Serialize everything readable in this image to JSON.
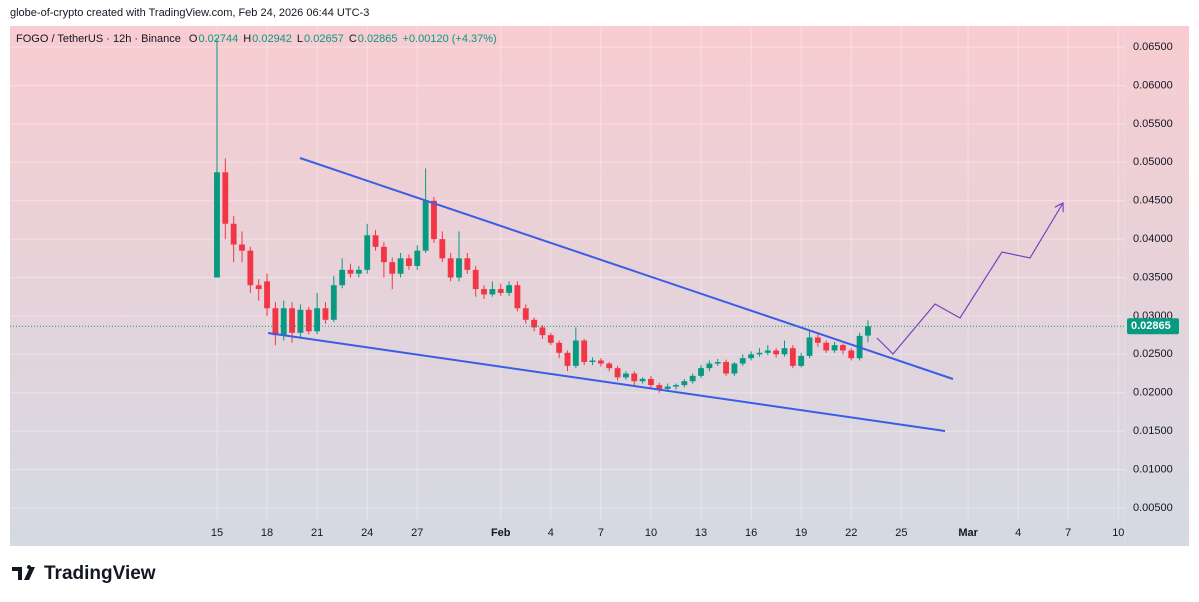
{
  "chart_data": {
    "type": "candlestick",
    "credit": "globe-of-crypto created with TradingView.com, Feb 24, 2026 06:44 UTC-3",
    "symbol": "FOGO / TetherUS · 12h · Binance",
    "ohlc_legend": [
      {
        "label": "O",
        "value": "0.02744"
      },
      {
        "label": "H",
        "value": "0.02942"
      },
      {
        "label": "L",
        "value": "0.02657"
      },
      {
        "label": "C",
        "value": "0.02865"
      }
    ],
    "change": "+0.00120 (+4.37%)",
    "brand": "TradingView",
    "up_color": "#089981",
    "down_color": "#f23645",
    "grid": true,
    "x": [
      0,
      0.5,
      1,
      1.5,
      2,
      2.5,
      3,
      3.5,
      4,
      4.5,
      5,
      5.5,
      6,
      6.5,
      7,
      7.5,
      8,
      8.5,
      9,
      9.5,
      10,
      10.5,
      11,
      11.5,
      12,
      12.5,
      13,
      13.5,
      14,
      14.5,
      15,
      15.5,
      16,
      16.5,
      17,
      17.5,
      18,
      18.5,
      19,
      19.5,
      20,
      20.5,
      21,
      21.5,
      22,
      22.5,
      23,
      23.5,
      24,
      24.5,
      25,
      25.5,
      26,
      26.5,
      27,
      27.5,
      28,
      28.5,
      29,
      29.5,
      30,
      30.5,
      31,
      31.5,
      32,
      32.5,
      33,
      33.5,
      34,
      34.5,
      35,
      35.5,
      36,
      36.5,
      37,
      37.5,
      38,
      38.5,
      39
    ],
    "open": [
      0.035,
      0.0487,
      0.042,
      0.0393,
      0.0385,
      0.034,
      0.0345,
      0.031,
      0.0275,
      0.031,
      0.0278,
      0.0308,
      0.028,
      0.031,
      0.0295,
      0.034,
      0.036,
      0.0355,
      0.036,
      0.0405,
      0.039,
      0.037,
      0.0355,
      0.0375,
      0.0365,
      0.0385,
      0.045,
      0.04,
      0.0375,
      0.035,
      0.0375,
      0.036,
      0.0335,
      0.0328,
      0.0335,
      0.033,
      0.034,
      0.031,
      0.0295,
      0.0285,
      0.0275,
      0.0265,
      0.0252,
      0.0235,
      0.0268,
      0.024,
      0.0242,
      0.0238,
      0.0232,
      0.022,
      0.0225,
      0.0215,
      0.0218,
      0.021,
      0.0205,
      0.0208,
      0.021,
      0.0215,
      0.0222,
      0.0232,
      0.0238,
      0.024,
      0.0225,
      0.0238,
      0.0245,
      0.025,
      0.0252,
      0.0255,
      0.025,
      0.0258,
      0.0235,
      0.0248,
      0.0272,
      0.0265,
      0.0255,
      0.0262,
      0.0255,
      0.0245,
      0.02744
    ],
    "high": [
      0.0662,
      0.0505,
      0.043,
      0.041,
      0.039,
      0.0348,
      0.0355,
      0.0318,
      0.032,
      0.0318,
      0.0315,
      0.0312,
      0.033,
      0.0318,
      0.0352,
      0.0375,
      0.0368,
      0.0365,
      0.042,
      0.0412,
      0.0396,
      0.0376,
      0.0382,
      0.038,
      0.0392,
      0.0492,
      0.0455,
      0.041,
      0.0382,
      0.041,
      0.0382,
      0.0365,
      0.034,
      0.0345,
      0.0342,
      0.0345,
      0.0345,
      0.0315,
      0.0298,
      0.0288,
      0.0278,
      0.0268,
      0.0255,
      0.0285,
      0.027,
      0.0246,
      0.0245,
      0.024,
      0.0235,
      0.0228,
      0.0228,
      0.022,
      0.0222,
      0.0213,
      0.0212,
      0.0212,
      0.0218,
      0.0225,
      0.0236,
      0.0242,
      0.0244,
      0.0243,
      0.024,
      0.025,
      0.0254,
      0.0258,
      0.0262,
      0.0258,
      0.0268,
      0.0262,
      0.0252,
      0.0282,
      0.0276,
      0.0268,
      0.0266,
      0.0264,
      0.0258,
      0.0278,
      0.02942
    ],
    "low": [
      0.035,
      0.04,
      0.037,
      0.037,
      0.033,
      0.032,
      0.03,
      0.0262,
      0.0268,
      0.0265,
      0.0272,
      0.0276,
      0.0276,
      0.029,
      0.0292,
      0.0336,
      0.035,
      0.035,
      0.0355,
      0.0385,
      0.035,
      0.0335,
      0.035,
      0.036,
      0.036,
      0.0382,
      0.0395,
      0.037,
      0.0345,
      0.0345,
      0.0355,
      0.0325,
      0.0322,
      0.0325,
      0.0326,
      0.0326,
      0.0306,
      0.029,
      0.028,
      0.027,
      0.0262,
      0.0245,
      0.0228,
      0.0232,
      0.0236,
      0.0236,
      0.0234,
      0.0228,
      0.0216,
      0.0217,
      0.021,
      0.0212,
      0.0206,
      0.02,
      0.0203,
      0.0204,
      0.0207,
      0.0212,
      0.0219,
      0.0228,
      0.0235,
      0.0222,
      0.0222,
      0.0235,
      0.0242,
      0.0247,
      0.0249,
      0.0246,
      0.0247,
      0.0232,
      0.0233,
      0.0245,
      0.026,
      0.0252,
      0.0252,
      0.025,
      0.0242,
      0.0242,
      0.02657
    ],
    "close": [
      0.0487,
      0.042,
      0.0393,
      0.0385,
      0.034,
      0.0335,
      0.031,
      0.0275,
      0.031,
      0.0278,
      0.0308,
      0.028,
      0.031,
      0.0295,
      0.034,
      0.036,
      0.0355,
      0.036,
      0.0405,
      0.039,
      0.037,
      0.0355,
      0.0375,
      0.0365,
      0.0385,
      0.045,
      0.04,
      0.0375,
      0.035,
      0.0375,
      0.036,
      0.0335,
      0.0328,
      0.0335,
      0.033,
      0.034,
      0.031,
      0.0295,
      0.0285,
      0.0275,
      0.0265,
      0.0252,
      0.0235,
      0.0268,
      0.024,
      0.0242,
      0.0238,
      0.0232,
      0.022,
      0.0225,
      0.0215,
      0.0218,
      0.021,
      0.0205,
      0.0208,
      0.021,
      0.0215,
      0.0222,
      0.0232,
      0.0238,
      0.024,
      0.0225,
      0.0238,
      0.0245,
      0.025,
      0.0252,
      0.0255,
      0.025,
      0.0258,
      0.0235,
      0.0248,
      0.0272,
      0.0265,
      0.0255,
      0.0262,
      0.0255,
      0.0245,
      0.0274,
      0.02865
    ],
    "last_price": {
      "value": 0.02865,
      "label": "0.02865"
    },
    "xlim": [
      -12.4,
      54.4
    ],
    "xticks": [
      {
        "value": 0,
        "label": "15"
      },
      {
        "value": 3,
        "label": "18"
      },
      {
        "value": 6,
        "label": "21"
      },
      {
        "value": 9,
        "label": "24"
      },
      {
        "value": 12,
        "label": "27"
      },
      {
        "value": 17,
        "label": "Feb"
      },
      {
        "value": 20,
        "label": "4"
      },
      {
        "value": 23,
        "label": "7"
      },
      {
        "value": 26,
        "label": "10"
      },
      {
        "value": 29,
        "label": "13"
      },
      {
        "value": 32,
        "label": "16"
      },
      {
        "value": 35,
        "label": "19"
      },
      {
        "value": 38,
        "label": "22"
      },
      {
        "value": 41,
        "label": "25"
      },
      {
        "value": 45,
        "label": "Mar"
      },
      {
        "value": 48,
        "label": "4"
      },
      {
        "value": 51,
        "label": "7"
      },
      {
        "value": 54,
        "label": "10"
      }
    ],
    "ylim": [
      0.00343,
      0.06775
    ],
    "yticks": [
      {
        "value": 0.005,
        "label": "0.00500"
      },
      {
        "value": 0.01,
        "label": "0.01000"
      },
      {
        "value": 0.015,
        "label": "0.01500"
      },
      {
        "value": 0.02,
        "label": "0.02000"
      },
      {
        "value": 0.025,
        "label": "0.02500"
      },
      {
        "value": 0.03,
        "label": "0.03000"
      },
      {
        "value": 0.035,
        "label": "0.03500"
      },
      {
        "value": 0.04,
        "label": "0.04000"
      },
      {
        "value": 0.045,
        "label": "0.04500"
      },
      {
        "value": 0.05,
        "label": "0.05000"
      },
      {
        "value": 0.055,
        "label": "0.05500"
      },
      {
        "value": 0.06,
        "label": "0.06000"
      },
      {
        "value": 0.065,
        "label": "0.06500"
      }
    ]
  }
}
